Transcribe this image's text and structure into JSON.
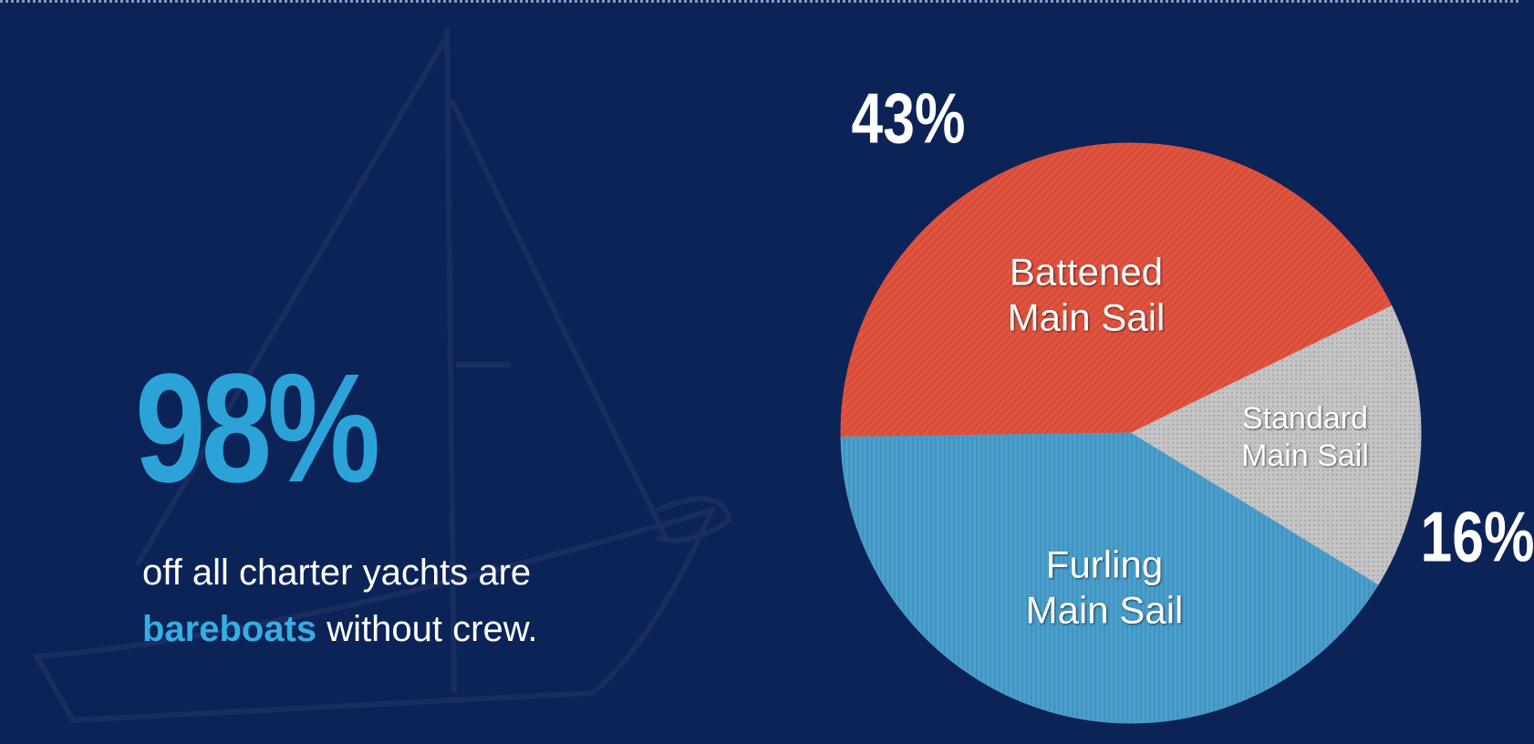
{
  "stat": {
    "value": "98%",
    "text_before": "off all charter yachts are",
    "highlight": "bareboats",
    "text_after": "without crew."
  },
  "chart_data": {
    "type": "pie",
    "categories": [
      "Battened Main Sail",
      "Standard Main Sail",
      "Furling Main Sail"
    ],
    "values": [
      43,
      16,
      41
    ],
    "value_labels": [
      "43%",
      "16%",
      null
    ],
    "colors": [
      "#e0533f",
      "#bdbdbd",
      "#4b9fcc"
    ]
  }
}
